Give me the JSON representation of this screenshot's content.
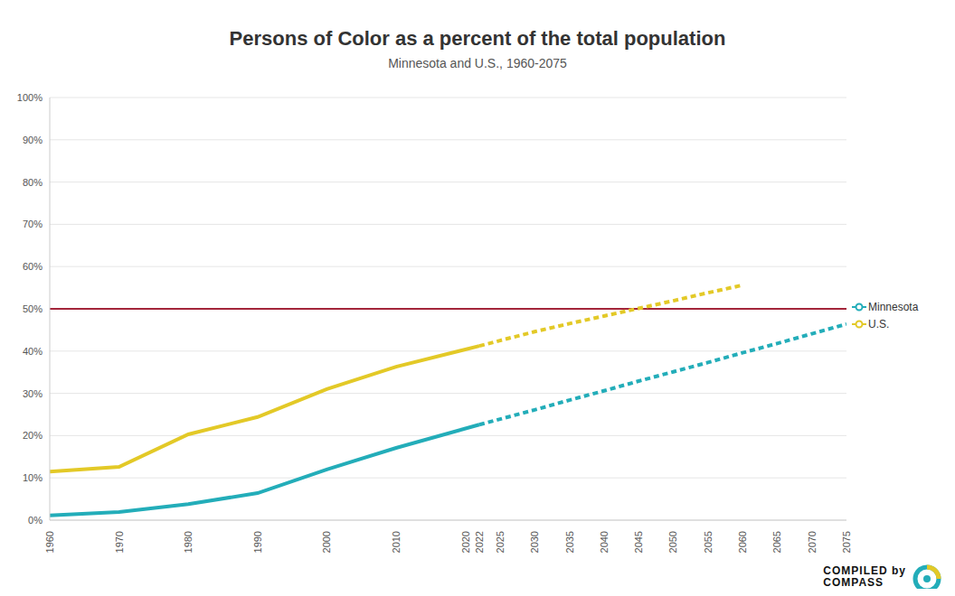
{
  "chart_data": {
    "type": "line",
    "title": "Persons of Color as a percent of the total population",
    "subtitle": "Minnesota and U.S., 1960-2075",
    "x": [
      1960,
      1970,
      1980,
      1990,
      2000,
      2010,
      2022,
      2025,
      2030,
      2035,
      2040,
      2045,
      2050,
      2055,
      2060,
      2065,
      2070,
      2075
    ],
    "series": [
      {
        "name": "Minnesota",
        "color": "#23adb9",
        "values": [
          1.1,
          1.9,
          3.8,
          6.4,
          12.0,
          17.1,
          22.6,
          null,
          null,
          null,
          null,
          null,
          null,
          null,
          null,
          null,
          null,
          null
        ],
        "projection": [
          null,
          null,
          null,
          null,
          null,
          null,
          22.6,
          23.9,
          26.1,
          28.4,
          30.6,
          32.9,
          35.1,
          37.3,
          39.6,
          41.8,
          44.1,
          46.4
        ]
      },
      {
        "name": "U.S.",
        "color": "#e3c927",
        "values": [
          11.5,
          12.6,
          20.3,
          24.4,
          31.0,
          36.3,
          41.2,
          null,
          null,
          null,
          null,
          null,
          null,
          null,
          null,
          null,
          null,
          null
        ],
        "projection": [
          null,
          null,
          null,
          null,
          null,
          null,
          41.2,
          42.5,
          44.6,
          46.5,
          48.3,
          50.1,
          51.9,
          53.8,
          55.6,
          null,
          null,
          null
        ]
      }
    ],
    "xlim": [
      1960,
      2075
    ],
    "xticks": [
      1960,
      1970,
      1980,
      1990,
      2000,
      2010,
      2020,
      2022,
      2025,
      2030,
      2035,
      2040,
      2045,
      2050,
      2055,
      2060,
      2065,
      2070,
      2075
    ],
    "ylim": [
      0,
      100
    ],
    "yticks": [
      {
        "value": 0,
        "label": "0%"
      },
      {
        "value": 10,
        "label": "10%"
      },
      {
        "value": 20,
        "label": "20%"
      },
      {
        "value": 30,
        "label": "30%"
      },
      {
        "value": 40,
        "label": "40%"
      },
      {
        "value": 50,
        "label": "50%"
      },
      {
        "value": 60,
        "label": "60%"
      },
      {
        "value": 70,
        "label": "70%"
      },
      {
        "value": 80,
        "label": "80%"
      },
      {
        "value": 90,
        "label": "90%"
      },
      {
        "value": 100,
        "label": "100%"
      }
    ],
    "reference_line": {
      "value": 50,
      "color": "#a3253a"
    },
    "grid": true,
    "legend": "right",
    "credit": [
      "COMPILED by",
      "COMPASS"
    ]
  }
}
